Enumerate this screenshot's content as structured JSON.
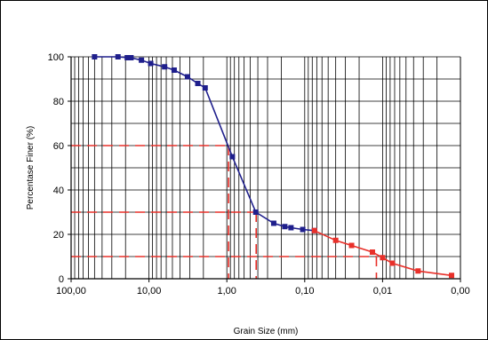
{
  "chart_data": {
    "type": "scatter",
    "title": "",
    "xlabel": "Grain Size (mm)",
    "ylabel": "Percentase Finer (%)",
    "xscale": "log",
    "xreversed": true,
    "xlim": [
      100,
      0.001
    ],
    "ylim": [
      0,
      100
    ],
    "grid": true,
    "legend": "none",
    "x_tick_labels": [
      "100,00",
      "10,00",
      "1,00",
      "0,10",
      "0,01",
      "0,00"
    ],
    "y_tick_labels": [
      "0",
      "20",
      "40",
      "60",
      "80",
      "100"
    ],
    "series": [
      {
        "color": "#1f1f8c",
        "marker": "square",
        "points": [
          {
            "x": 50,
            "y": 100
          },
          {
            "x": 25,
            "y": 100
          },
          {
            "x": 19,
            "y": 99.6
          },
          {
            "x": 17,
            "y": 99.6
          },
          {
            "x": 12.5,
            "y": 98.5
          },
          {
            "x": 9.5,
            "y": 97
          },
          {
            "x": 6.3,
            "y": 95.5
          },
          {
            "x": 4.75,
            "y": 94
          },
          {
            "x": 3.2,
            "y": 91
          },
          {
            "x": 2.36,
            "y": 88
          },
          {
            "x": 1.9,
            "y": 86
          },
          {
            "x": 0.85,
            "y": 55
          },
          {
            "x": 0.425,
            "y": 30
          },
          {
            "x": 0.25,
            "y": 25
          },
          {
            "x": 0.18,
            "y": 23.5
          },
          {
            "x": 0.15,
            "y": 23
          },
          {
            "x": 0.106,
            "y": 22.2
          },
          {
            "x": 0.075,
            "y": 21.7
          }
        ]
      },
      {
        "color": "#e8302a",
        "marker": "square",
        "points": [
          {
            "x": 0.075,
            "y": 21.7
          },
          {
            "x": 0.04,
            "y": 17.3
          },
          {
            "x": 0.025,
            "y": 15
          },
          {
            "x": 0.0135,
            "y": 12
          },
          {
            "x": 0.01,
            "y": 9.5
          },
          {
            "x": 0.0075,
            "y": 7
          },
          {
            "x": 0.0035,
            "y": 3.5
          },
          {
            "x": 0.0013,
            "y": 1.5
          }
        ]
      }
    ],
    "reference_lines": [
      {
        "y": 60,
        "x": 0.95,
        "color": "#e8302a"
      },
      {
        "y": 30,
        "x": 0.42,
        "color": "#e8302a"
      },
      {
        "y": 10,
        "x": 0.012,
        "color": "#e8302a"
      }
    ],
    "colors": {
      "axis": "#000000",
      "grid": "#000000",
      "reference": "#e8302a"
    }
  }
}
